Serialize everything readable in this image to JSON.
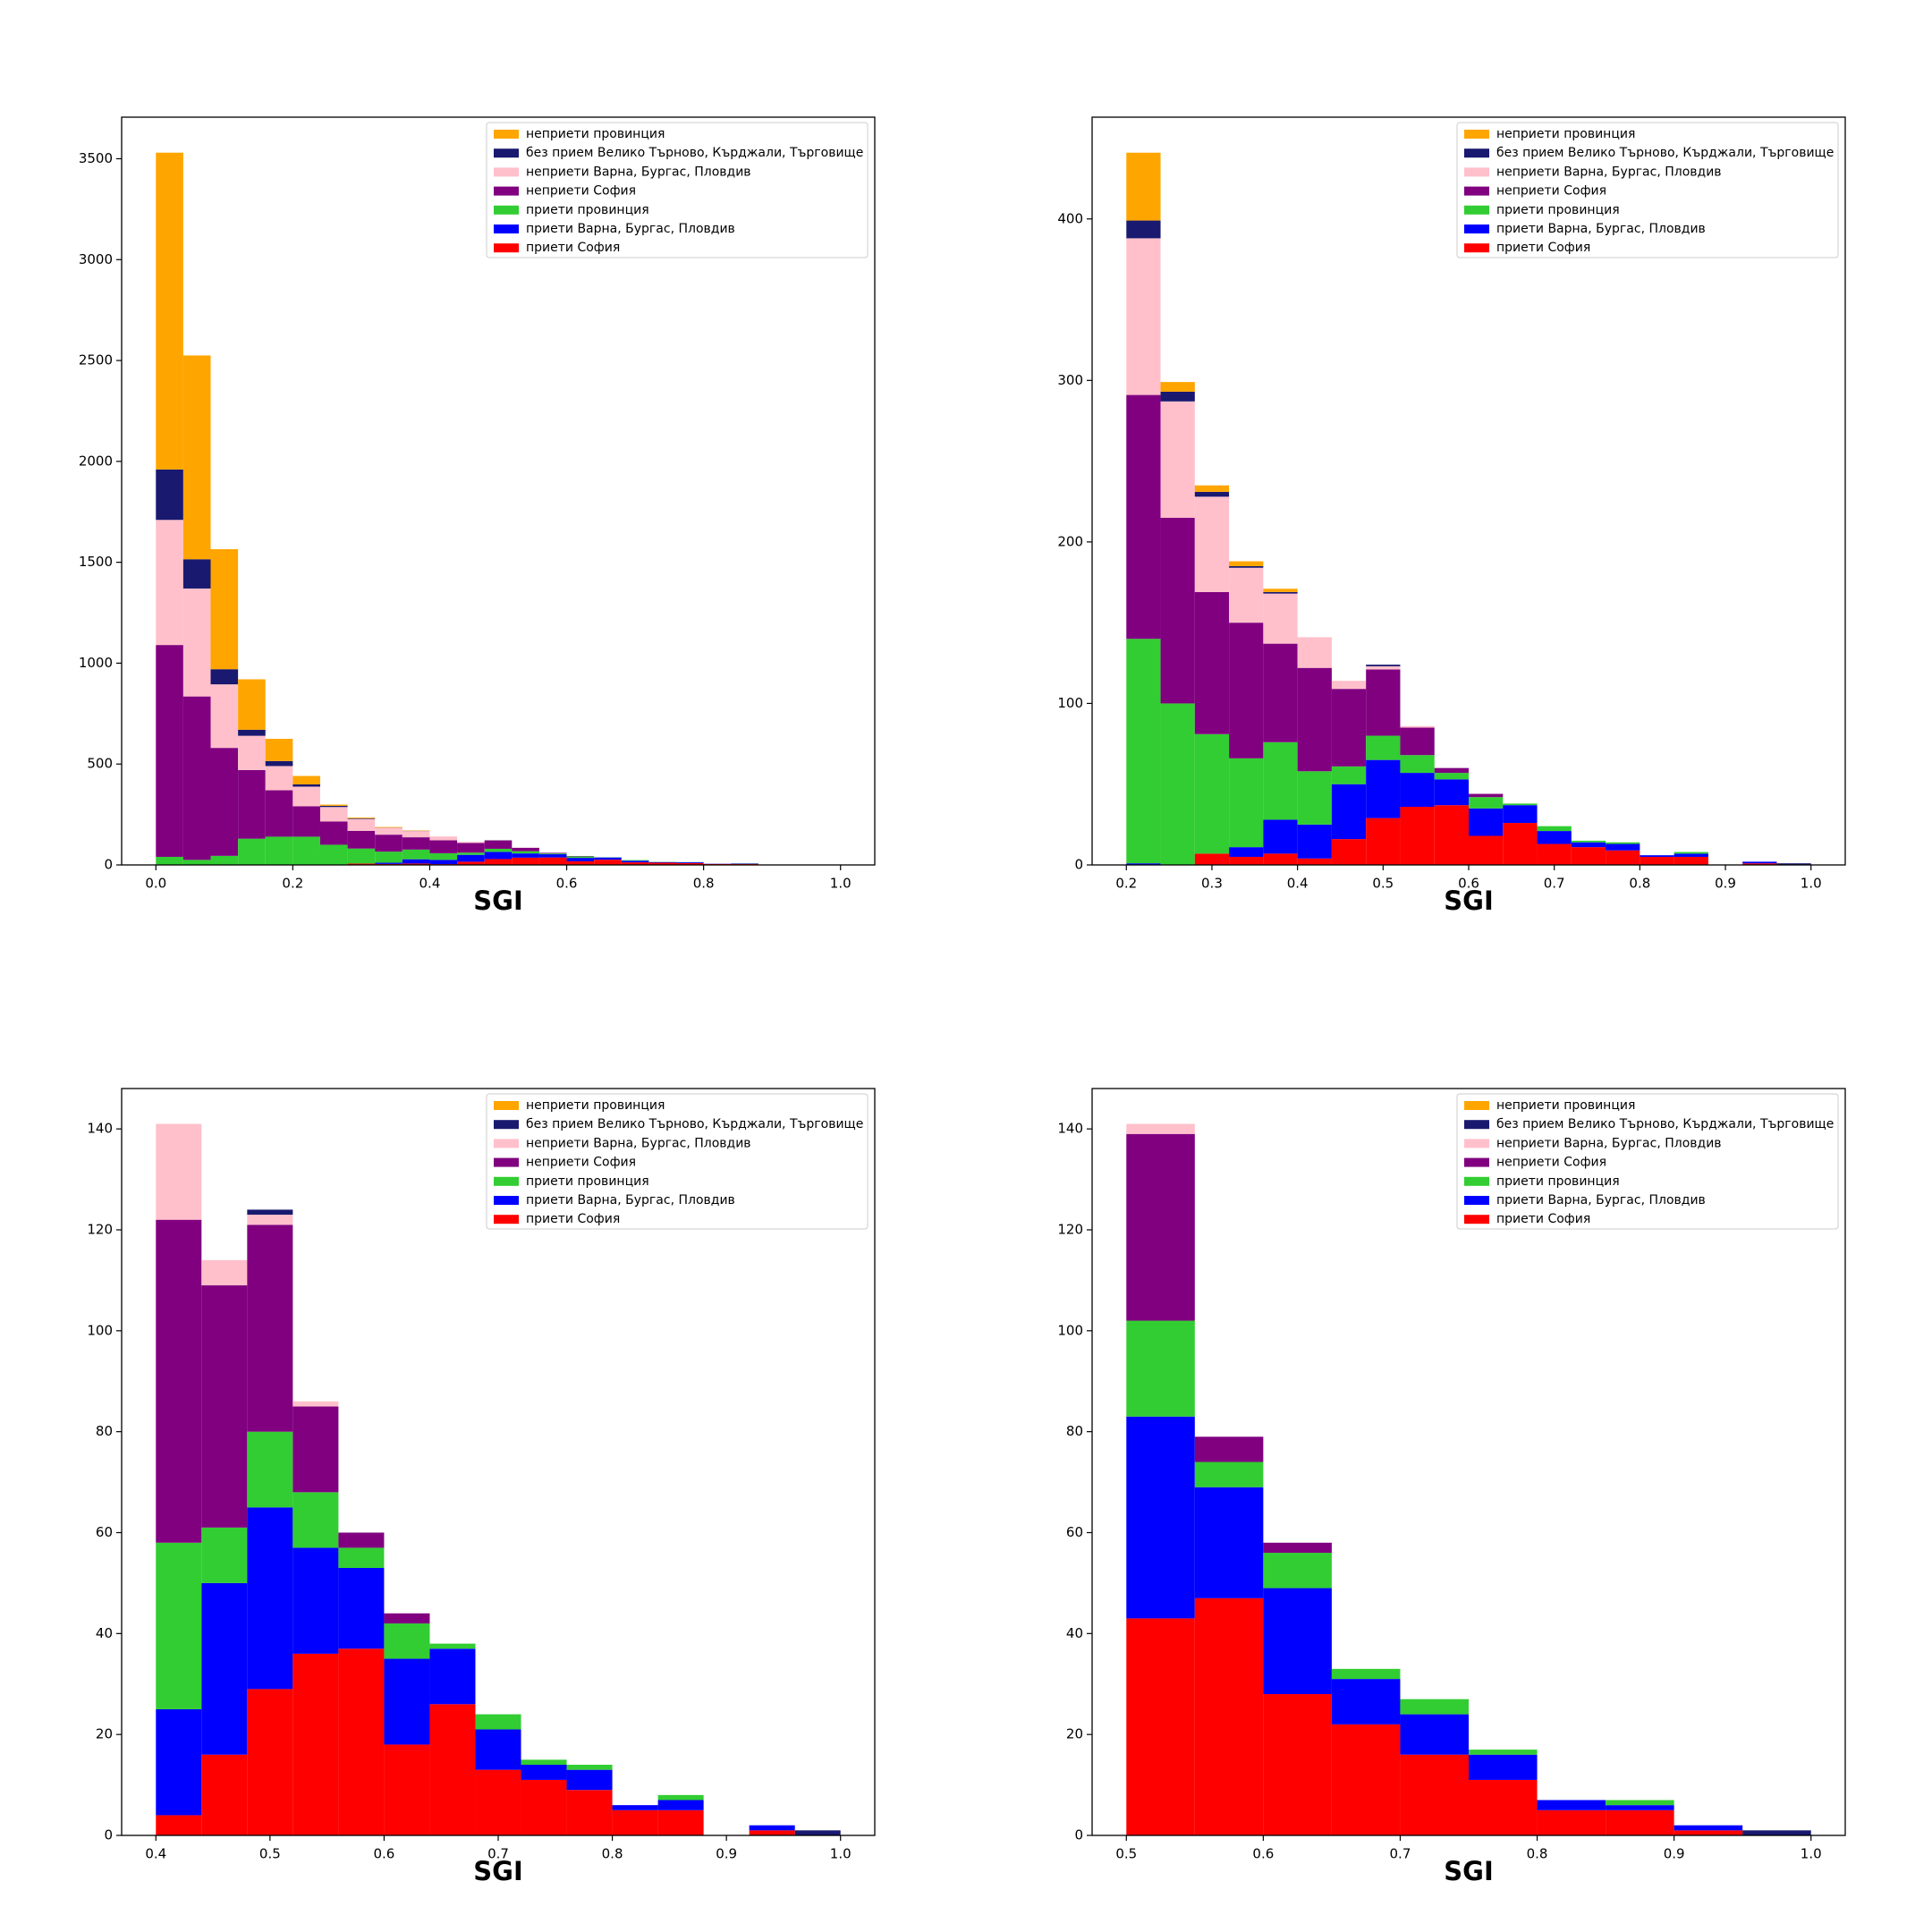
{
  "chart_data": [
    {
      "type": "histogram",
      "xlabel": "SGI",
      "legend": "upper right",
      "bins": [
        0,
        0.04,
        0.08,
        0.12,
        0.16,
        0.2,
        0.24,
        0.28,
        0.32,
        0.36,
        0.4,
        0.44,
        0.48,
        0.52,
        0.56,
        0.6,
        0.64,
        0.68,
        0.72,
        0.76,
        0.8,
        0.84,
        0.88,
        0.92,
        0.96,
        1.0
      ],
      "xlim": [
        -0.05,
        1.05
      ],
      "xticks": [
        {
          "value": 0,
          "label": "0.0"
        },
        0.2,
        0.4,
        0.6,
        0.8,
        {
          "value": 1,
          "label": "1.0"
        }
      ],
      "ylim": [
        0,
        3706
      ],
      "yticks": [
        0,
        500,
        1000,
        1500,
        2000,
        2500,
        3000,
        3500
      ],
      "series": [
        {
          "name": "приети София",
          "color": "#ff0000",
          "values": [
            0,
            0,
            0,
            0,
            0,
            0,
            0,
            7,
            5,
            7,
            4,
            16,
            29,
            36,
            37,
            18,
            26,
            13,
            11,
            9,
            5,
            5,
            0,
            1,
            0
          ]
        },
        {
          "name": "приети Варна, Бургас, Пловдив",
          "color": "#0000ff",
          "values": [
            0,
            0,
            0,
            0,
            0,
            1,
            0,
            0,
            6,
            21,
            21,
            34,
            36,
            21,
            16,
            17,
            11,
            8,
            3,
            4,
            1,
            2,
            0,
            1,
            0
          ]
        },
        {
          "name": "приети провинция",
          "color": "#32cd32",
          "values": [
            40,
            25,
            45,
            130,
            140,
            139,
            100,
            74,
            55,
            48,
            33,
            11,
            15,
            11,
            4,
            7,
            1,
            3,
            1,
            1,
            0,
            1,
            0,
            0,
            0
          ]
        },
        {
          "name": "неприети София",
          "color": "#800080",
          "values": [
            1050,
            810,
            535,
            340,
            230,
            151,
            115,
            88,
            84,
            61,
            64,
            48,
            41,
            17,
            3,
            2,
            0,
            0,
            0,
            0,
            0,
            0,
            0,
            0,
            0
          ]
        },
        {
          "name": "неприети Варна, Бургас, Пловдив",
          "color": "#ffc0cb",
          "values": [
            620,
            535,
            315,
            170,
            120,
            97,
            72,
            59,
            34,
            31,
            19,
            5,
            2,
            1,
            0,
            0,
            0,
            0,
            0,
            0,
            0,
            0,
            0,
            0,
            0
          ]
        },
        {
          "name": "без прием Велико Търново, Кърджали, Търговище",
          "color": "#191970",
          "values": [
            250,
            145,
            75,
            30,
            25,
            11,
            6,
            3,
            1,
            1,
            0,
            0,
            1,
            0,
            0,
            0,
            0,
            0,
            0,
            0,
            0,
            0,
            0,
            0,
            1
          ]
        },
        {
          "name": "неприети провинция",
          "color": "#ffa500",
          "values": [
            1570,
            1010,
            595,
            250,
            110,
            42,
            6,
            4,
            3,
            2,
            0,
            0,
            0,
            0,
            0,
            0,
            0,
            0,
            0,
            0,
            0,
            0,
            0,
            0,
            0
          ]
        }
      ]
    },
    {
      "type": "histogram",
      "xlabel": "SGI",
      "legend": "upper right",
      "bins": [
        0.2,
        0.24,
        0.28,
        0.32,
        0.36,
        0.4,
        0.44,
        0.48,
        0.52,
        0.56,
        0.6,
        0.64,
        0.68,
        0.72,
        0.76,
        0.8,
        0.84,
        0.88,
        0.92,
        0.96,
        1.0
      ],
      "xlim": [
        0.16,
        1.04
      ],
      "xticks": [
        0.2,
        0.3,
        0.4,
        0.5,
        0.6,
        0.7,
        0.8,
        0.9,
        {
          "value": 1,
          "label": "1.0"
        }
      ],
      "ylim": [
        0,
        463
      ],
      "yticks": [
        0,
        100,
        200,
        300,
        400
      ],
      "series": [
        {
          "name": "приети София",
          "color": "#ff0000",
          "values": [
            0,
            0,
            7,
            5,
            7,
            4,
            16,
            29,
            36,
            37,
            18,
            26,
            13,
            11,
            9,
            5,
            5,
            0,
            1,
            0
          ]
        },
        {
          "name": "приети Варна, Бургас, Пловдив",
          "color": "#0000ff",
          "values": [
            1,
            0,
            0,
            6,
            21,
            21,
            34,
            36,
            21,
            16,
            17,
            11,
            8,
            3,
            4,
            1,
            2,
            0,
            1,
            0
          ]
        },
        {
          "name": "приети провинция",
          "color": "#32cd32",
          "values": [
            139,
            100,
            74,
            55,
            48,
            33,
            11,
            15,
            11,
            4,
            7,
            1,
            3,
            1,
            1,
            0,
            1,
            0,
            0,
            0
          ]
        },
        {
          "name": "неприети София",
          "color": "#800080",
          "values": [
            151,
            115,
            88,
            84,
            61,
            64,
            48,
            41,
            17,
            3,
            2,
            0,
            0,
            0,
            0,
            0,
            0,
            0,
            0,
            0
          ]
        },
        {
          "name": "неприети Варна, Бургас, Пловдив",
          "color": "#ffc0cb",
          "values": [
            97,
            72,
            59,
            34,
            31,
            19,
            5,
            2,
            1,
            0,
            0,
            0,
            0,
            0,
            0,
            0,
            0,
            0,
            0,
            0
          ]
        },
        {
          "name": "без прием Велико Търново, Кърджали, Търговище",
          "color": "#191970",
          "values": [
            11,
            6,
            3,
            1,
            1,
            0,
            0,
            1,
            0,
            0,
            0,
            0,
            0,
            0,
            0,
            0,
            0,
            0,
            0,
            1
          ]
        },
        {
          "name": "неприети провинция",
          "color": "#ffa500",
          "values": [
            42,
            6,
            4,
            3,
            2,
            0,
            0,
            0,
            0,
            0,
            0,
            0,
            0,
            0,
            0,
            0,
            0,
            0,
            0,
            0
          ]
        }
      ]
    },
    {
      "type": "histogram",
      "xlabel": "SGI",
      "legend": "upper right",
      "bins": [
        0.4,
        0.44,
        0.48,
        0.52,
        0.56,
        0.6,
        0.64,
        0.68,
        0.72,
        0.76,
        0.8,
        0.84,
        0.88,
        0.92,
        0.96,
        1.0
      ],
      "xlim": [
        0.37,
        1.03
      ],
      "xticks": [
        0.4,
        0.5,
        0.6,
        0.7,
        0.8,
        0.9,
        {
          "value": 1,
          "label": "1.0"
        }
      ],
      "ylim": [
        0,
        148
      ],
      "yticks": [
        0,
        20,
        40,
        60,
        80,
        100,
        120,
        140
      ],
      "series": [
        {
          "name": "приети София",
          "color": "#ff0000",
          "values": [
            4,
            16,
            29,
            36,
            37,
            18,
            26,
            13,
            11,
            9,
            5,
            5,
            0,
            1,
            0
          ]
        },
        {
          "name": "приети Варна, Бургас, Пловдив",
          "color": "#0000ff",
          "values": [
            21,
            34,
            36,
            21,
            16,
            17,
            11,
            8,
            3,
            4,
            1,
            2,
            0,
            1,
            0
          ]
        },
        {
          "name": "приети провинция",
          "color": "#32cd32",
          "values": [
            33,
            11,
            15,
            11,
            4,
            7,
            1,
            3,
            1,
            1,
            0,
            1,
            0,
            0,
            0
          ]
        },
        {
          "name": "неприети София",
          "color": "#800080",
          "values": [
            64,
            48,
            41,
            17,
            3,
            2,
            0,
            0,
            0,
            0,
            0,
            0,
            0,
            0,
            0
          ]
        },
        {
          "name": "неприети Варна, Бургас, Пловдив",
          "color": "#ffc0cb",
          "values": [
            19,
            5,
            2,
            1,
            0,
            0,
            0,
            0,
            0,
            0,
            0,
            0,
            0,
            0,
            0
          ]
        },
        {
          "name": "без прием Велико Търново, Кърджали, Търговище",
          "color": "#191970",
          "values": [
            0,
            0,
            1,
            0,
            0,
            0,
            0,
            0,
            0,
            0,
            0,
            0,
            0,
            0,
            1
          ]
        },
        {
          "name": "неприети провинция",
          "color": "#ffa500",
          "values": [
            0,
            0,
            0,
            0,
            0,
            0,
            0,
            0,
            0,
            0,
            0,
            0,
            0,
            0,
            0
          ]
        }
      ]
    },
    {
      "type": "histogram",
      "xlabel": "SGI",
      "legend": "upper right",
      "bins": [
        0.5,
        0.55,
        0.6,
        0.65,
        0.7,
        0.75,
        0.8,
        0.85,
        0.9,
        0.95,
        1.0
      ],
      "xlim": [
        0.475,
        1.025
      ],
      "xticks": [
        0.5,
        0.6,
        0.7,
        0.8,
        0.9,
        {
          "value": 1,
          "label": "1.0"
        }
      ],
      "ylim": [
        0,
        148
      ],
      "yticks": [
        0,
        20,
        40,
        60,
        80,
        100,
        120,
        140
      ],
      "series": [
        {
          "name": "приети София",
          "color": "#ff0000",
          "values": [
            43,
            47,
            28,
            22,
            16,
            11,
            5,
            5,
            1,
            0
          ]
        },
        {
          "name": "приети Варна, Бургас, Пловдив",
          "color": "#0000ff",
          "values": [
            40,
            22,
            21,
            9,
            8,
            5,
            2,
            1,
            1,
            0
          ]
        },
        {
          "name": "приети провинция",
          "color": "#32cd32",
          "values": [
            19,
            5,
            7,
            2,
            3,
            1,
            0,
            1,
            0,
            0
          ]
        },
        {
          "name": "неприети София",
          "color": "#800080",
          "values": [
            37,
            5,
            2,
            0,
            0,
            0,
            0,
            0,
            0,
            0
          ]
        },
        {
          "name": "неприети Варна, Бургас, Пловдив",
          "color": "#ffc0cb",
          "values": [
            2,
            0,
            0,
            0,
            0,
            0,
            0,
            0,
            0,
            0
          ]
        },
        {
          "name": "без прием Велико Търново, Кърджали, Търговище",
          "color": "#191970",
          "values": [
            0,
            0,
            0,
            0,
            0,
            0,
            0,
            0,
            0,
            1
          ]
        },
        {
          "name": "неприети провинция",
          "color": "#ffa500",
          "values": [
            0,
            0,
            0,
            0,
            0,
            0,
            0,
            0,
            0,
            0
          ]
        }
      ]
    }
  ]
}
